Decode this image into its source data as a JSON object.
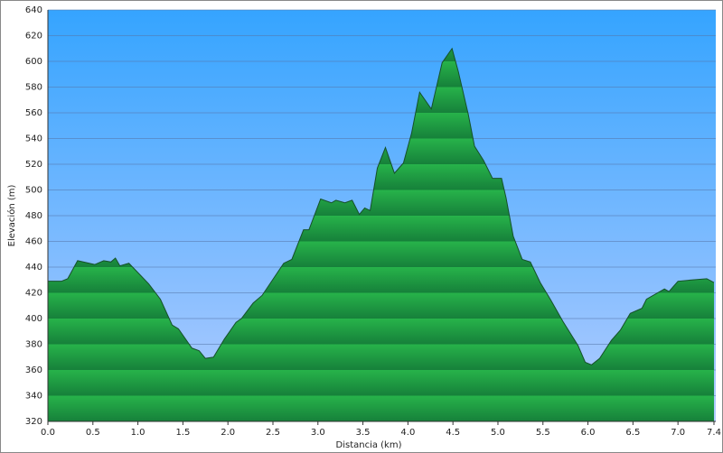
{
  "chart_data": {
    "type": "area",
    "xlabel": "Distancia   (km)",
    "ylabel": "Elevación (m)",
    "x": [
      0,
      0.15,
      0.22,
      0.33,
      0.52,
      0.62,
      0.7,
      0.75,
      0.8,
      0.9,
      1.12,
      1.25,
      1.38,
      1.45,
      1.6,
      1.68,
      1.75,
      1.84,
      1.96,
      2.09,
      2.15,
      2.28,
      2.38,
      2.62,
      2.71,
      2.84,
      2.9,
      3.03,
      3.15,
      3.2,
      3.3,
      3.38,
      3.46,
      3.52,
      3.58,
      3.66,
      3.75,
      3.85,
      3.95,
      4.04,
      4.13,
      4.26,
      4.38,
      4.49,
      4.56,
      4.67,
      4.74,
      4.84,
      4.94,
      5.04,
      5.09,
      5.17,
      5.27,
      5.36,
      5.47,
      5.59,
      5.72,
      5.89,
      5.97,
      6.04,
      6.13,
      6.26,
      6.36,
      6.47,
      6.6,
      6.65,
      6.85,
      6.9,
      7.0,
      7.15,
      7.32,
      7.4
    ],
    "values": [
      429,
      429,
      431,
      445,
      442,
      445,
      444,
      447,
      441,
      443,
      427,
      415,
      395,
      392,
      377,
      375,
      369,
      370,
      384,
      397,
      400,
      412,
      418,
      443,
      446,
      469,
      469,
      493,
      490,
      492,
      490,
      492,
      481,
      486,
      484,
      517,
      533,
      513,
      521,
      544,
      576,
      563,
      599,
      610,
      592,
      559,
      534,
      523,
      509,
      509,
      494,
      464,
      446,
      444,
      428,
      414,
      398,
      379,
      366,
      364,
      369,
      383,
      391,
      404,
      408,
      415,
      423,
      421,
      429,
      430,
      431,
      428
    ],
    "color": "#1f9e3c",
    "xlim": [
      0,
      7.4
    ],
    "xticks": [
      {
        "value": 0,
        "label": "0.0"
      },
      0.5,
      {
        "value": 1,
        "label": "1.0"
      },
      1.5,
      {
        "value": 2,
        "label": "2.0"
      },
      2.5,
      {
        "value": 3,
        "label": "3.0"
      },
      3.5,
      {
        "value": 4,
        "label": "4.0"
      },
      4.5,
      {
        "value": 5,
        "label": "5.0"
      },
      5.5,
      {
        "value": 6,
        "label": "6.0"
      },
      6.5,
      {
        "value": 7,
        "label": "7.0"
      },
      7.4
    ],
    "ylim": [
      320,
      640
    ],
    "yticks": [
      320,
      340,
      360,
      380,
      400,
      420,
      440,
      460,
      480,
      500,
      520,
      540,
      560,
      580,
      600,
      620,
      640
    ],
    "grid": true
  }
}
